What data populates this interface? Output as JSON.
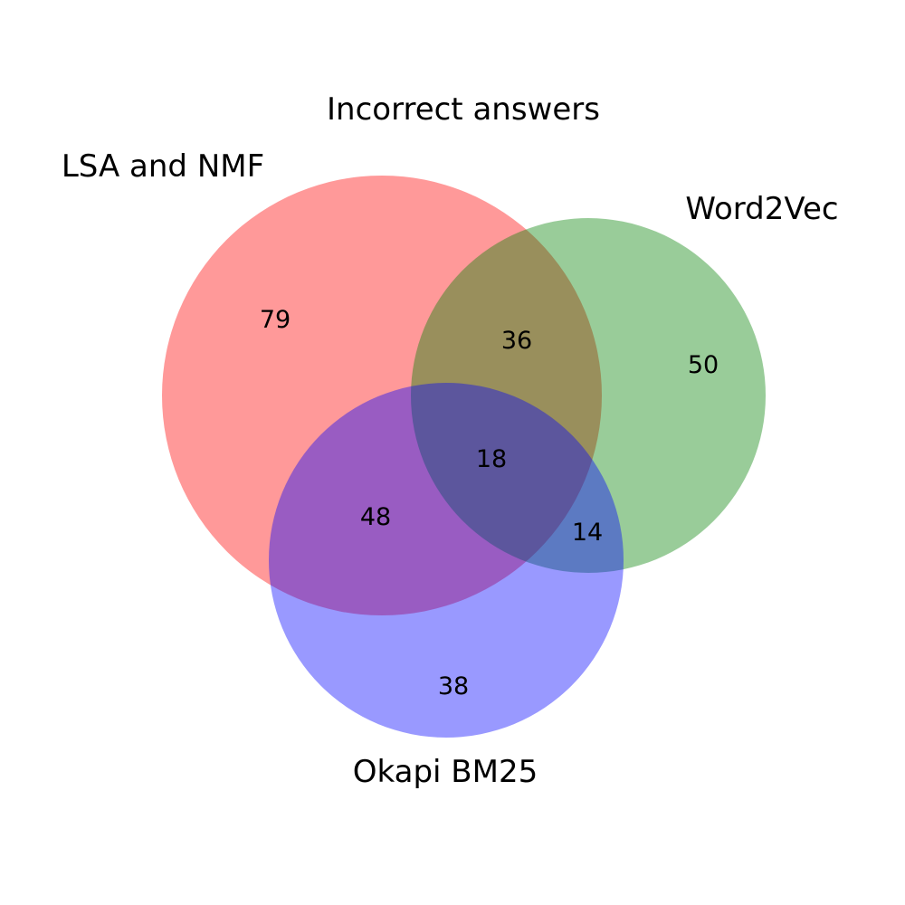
{
  "title": "Incorrect answers",
  "sets": {
    "a": {
      "label": "LSA and NMF",
      "color": "#ff0000"
    },
    "b": {
      "label": "Word2Vec",
      "color": "#008000"
    },
    "c": {
      "label": "Okapi BM25",
      "color": "#0000ff"
    }
  },
  "regions": {
    "a_only": "79",
    "b_only": "50",
    "c_only": "38",
    "ab": "36",
    "ac": "48",
    "bc": "14",
    "abc": "18"
  },
  "opacity": 0.4
}
